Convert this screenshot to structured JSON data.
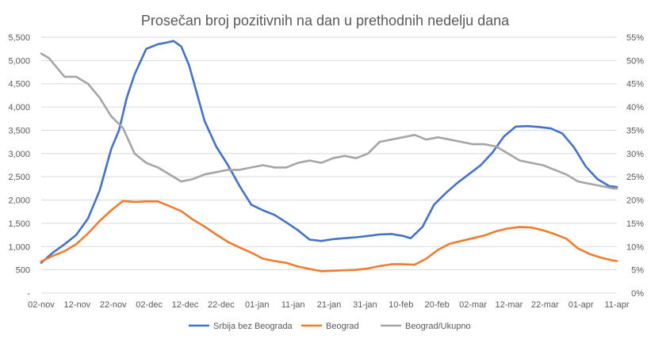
{
  "chart_data": {
    "type": "line",
    "title": "Prosečan broj pozitivnih na dan u prethodnih nedelju dana",
    "x_ticks": [
      "02-nov",
      "12-nov",
      "22-nov",
      "02-dec",
      "12-dec",
      "22-dec",
      "01-jan",
      "11-jan",
      "21-jan",
      "31-jan",
      "10-feb",
      "20-feb",
      "02-mar",
      "12-mar",
      "22-mar",
      "01-apr",
      "11-apr"
    ],
    "y_left": {
      "min": 0,
      "max": 5500,
      "ticks": [
        0,
        500,
        1000,
        1500,
        2000,
        2500,
        3000,
        3500,
        4000,
        4500,
        5000,
        5500
      ],
      "tick_labels": [
        "-",
        "500",
        "1,000",
        "1,500",
        "2,000",
        "2,500",
        "3,000",
        "3,500",
        "4,000",
        "4,500",
        "5,000",
        "5,500"
      ]
    },
    "y_right": {
      "min": 0,
      "max": 55,
      "ticks": [
        0,
        5,
        10,
        15,
        20,
        25,
        30,
        35,
        40,
        45,
        50,
        55
      ],
      "tick_labels": [
        "0%",
        "5%",
        "10%",
        "15%",
        "20%",
        "25%",
        "30%",
        "35%",
        "40%",
        "45%",
        "50%",
        "55%"
      ]
    },
    "grid": true,
    "legend_position": "bottom",
    "series": [
      {
        "name": "Srbija bez Beograda",
        "axis": "left",
        "color": "#4472C4",
        "points": [
          [
            0,
            650
          ],
          [
            3,
            870
          ],
          [
            6,
            1050
          ],
          [
            9,
            1250
          ],
          [
            12,
            1600
          ],
          [
            15,
            2200
          ],
          [
            18,
            3100
          ],
          [
            20,
            3500
          ],
          [
            22,
            4200
          ],
          [
            24,
            4700
          ],
          [
            27,
            5250
          ],
          [
            30,
            5350
          ],
          [
            32,
            5380
          ],
          [
            34,
            5420
          ],
          [
            36,
            5300
          ],
          [
            38,
            4900
          ],
          [
            40,
            4300
          ],
          [
            42,
            3700
          ],
          [
            45,
            3150
          ],
          [
            48,
            2750
          ],
          [
            51,
            2300
          ],
          [
            54,
            1900
          ],
          [
            57,
            1780
          ],
          [
            60,
            1680
          ],
          [
            63,
            1520
          ],
          [
            66,
            1350
          ],
          [
            69,
            1150
          ],
          [
            72,
            1120
          ],
          [
            75,
            1160
          ],
          [
            78,
            1180
          ],
          [
            81,
            1200
          ],
          [
            84,
            1230
          ],
          [
            87,
            1260
          ],
          [
            90,
            1270
          ],
          [
            93,
            1230
          ],
          [
            95,
            1180
          ],
          [
            98,
            1420
          ],
          [
            101,
            1900
          ],
          [
            104,
            2150
          ],
          [
            107,
            2370
          ],
          [
            110,
            2560
          ],
          [
            113,
            2750
          ],
          [
            116,
            3020
          ],
          [
            119,
            3370
          ],
          [
            122,
            3580
          ],
          [
            125,
            3590
          ],
          [
            128,
            3570
          ],
          [
            131,
            3540
          ],
          [
            134,
            3430
          ],
          [
            137,
            3130
          ],
          [
            140,
            2720
          ],
          [
            143,
            2450
          ],
          [
            146,
            2300
          ],
          [
            148,
            2280
          ]
        ]
      },
      {
        "name": "Beograd",
        "axis": "left",
        "color": "#ED7D31",
        "points": [
          [
            0,
            680
          ],
          [
            3,
            800
          ],
          [
            6,
            900
          ],
          [
            9,
            1050
          ],
          [
            12,
            1280
          ],
          [
            15,
            1550
          ],
          [
            18,
            1780
          ],
          [
            21,
            1980
          ],
          [
            24,
            1960
          ],
          [
            27,
            1970
          ],
          [
            30,
            1970
          ],
          [
            33,
            1870
          ],
          [
            36,
            1760
          ],
          [
            39,
            1580
          ],
          [
            42,
            1430
          ],
          [
            45,
            1260
          ],
          [
            48,
            1100
          ],
          [
            51,
            980
          ],
          [
            54,
            870
          ],
          [
            57,
            740
          ],
          [
            60,
            690
          ],
          [
            63,
            650
          ],
          [
            66,
            570
          ],
          [
            69,
            520
          ],
          [
            72,
            470
          ],
          [
            75,
            480
          ],
          [
            78,
            490
          ],
          [
            81,
            500
          ],
          [
            84,
            530
          ],
          [
            87,
            580
          ],
          [
            90,
            620
          ],
          [
            93,
            620
          ],
          [
            96,
            610
          ],
          [
            99,
            740
          ],
          [
            102,
            930
          ],
          [
            105,
            1060
          ],
          [
            108,
            1120
          ],
          [
            111,
            1180
          ],
          [
            114,
            1240
          ],
          [
            117,
            1330
          ],
          [
            120,
            1390
          ],
          [
            123,
            1420
          ],
          [
            126,
            1410
          ],
          [
            129,
            1350
          ],
          [
            132,
            1270
          ],
          [
            135,
            1170
          ],
          [
            138,
            960
          ],
          [
            141,
            840
          ],
          [
            144,
            760
          ],
          [
            147,
            700
          ],
          [
            148,
            690
          ]
        ]
      },
      {
        "name": "Beograd/Ukupno",
        "axis": "right",
        "color": "#A5A5A5",
        "points": [
          [
            0,
            51.5
          ],
          [
            2,
            50.5
          ],
          [
            4,
            48.5
          ],
          [
            6,
            46.5
          ],
          [
            9,
            46.5
          ],
          [
            12,
            45.0
          ],
          [
            15,
            42.0
          ],
          [
            18,
            38.0
          ],
          [
            21,
            35.5
          ],
          [
            24,
            30.0
          ],
          [
            27,
            28.0
          ],
          [
            30,
            27.0
          ],
          [
            33,
            25.5
          ],
          [
            36,
            24.0
          ],
          [
            39,
            24.5
          ],
          [
            42,
            25.5
          ],
          [
            45,
            26.0
          ],
          [
            48,
            26.5
          ],
          [
            51,
            26.5
          ],
          [
            54,
            27.0
          ],
          [
            57,
            27.5
          ],
          [
            60,
            27.0
          ],
          [
            63,
            27.0
          ],
          [
            66,
            28.0
          ],
          [
            69,
            28.5
          ],
          [
            72,
            28.0
          ],
          [
            75,
            29.0
          ],
          [
            78,
            29.5
          ],
          [
            81,
            29.0
          ],
          [
            84,
            30.0
          ],
          [
            87,
            32.5
          ],
          [
            90,
            33.0
          ],
          [
            93,
            33.5
          ],
          [
            96,
            34.0
          ],
          [
            99,
            33.0
          ],
          [
            102,
            33.5
          ],
          [
            105,
            33.0
          ],
          [
            108,
            32.5
          ],
          [
            111,
            32.0
          ],
          [
            114,
            32.0
          ],
          [
            117,
            31.5
          ],
          [
            120,
            30.0
          ],
          [
            123,
            28.5
          ],
          [
            126,
            28.0
          ],
          [
            129,
            27.5
          ],
          [
            132,
            26.5
          ],
          [
            135,
            25.5
          ],
          [
            138,
            24.0
          ],
          [
            141,
            23.5
          ],
          [
            144,
            23.0
          ],
          [
            147,
            22.5
          ],
          [
            148,
            22.5
          ]
        ]
      }
    ]
  }
}
